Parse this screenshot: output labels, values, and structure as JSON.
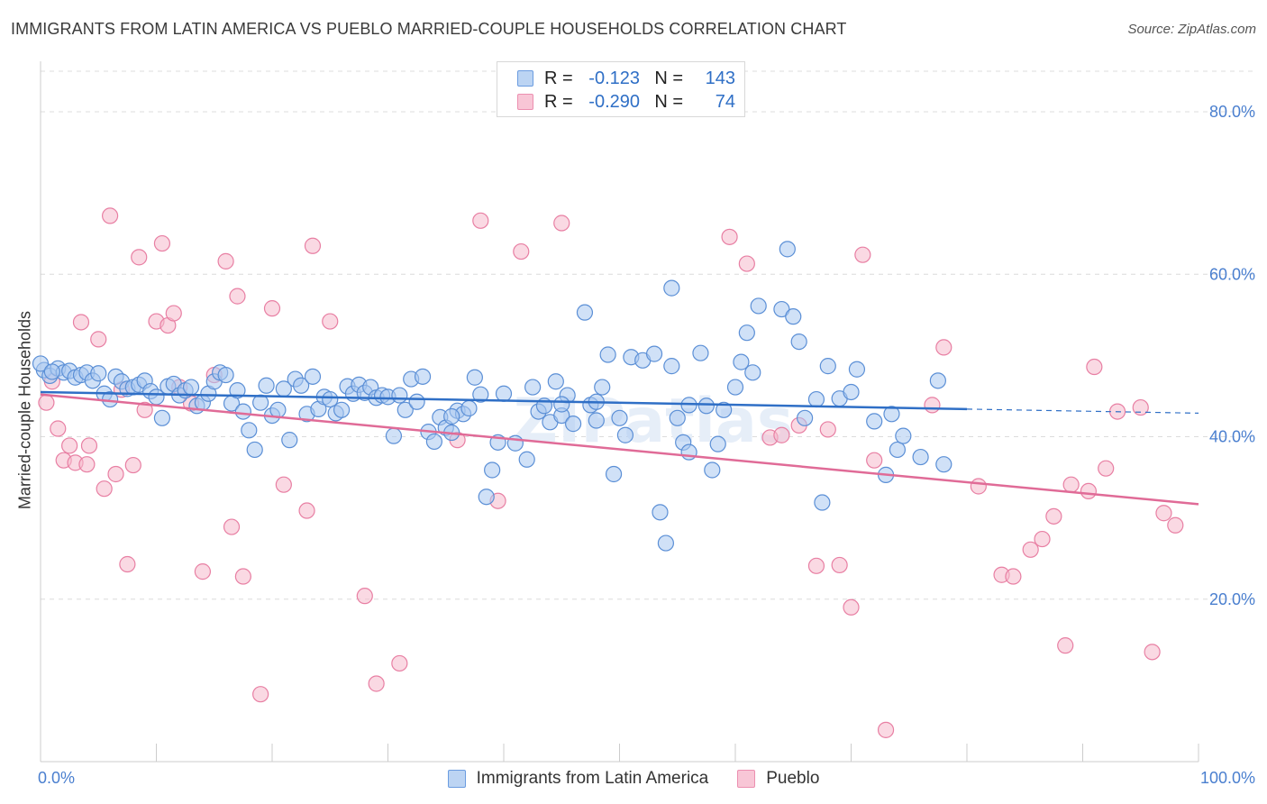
{
  "header": {
    "title": "IMMIGRANTS FROM LATIN AMERICA VS PUEBLO MARRIED-COUPLE HOUSEHOLDS CORRELATION CHART",
    "source": "Source: ZipAtlas.com"
  },
  "legend_top": {
    "rows": [
      {
        "label": "R =",
        "r": "-0.123",
        "n_label": "N =",
        "n": "143"
      },
      {
        "label": "R =",
        "r": "-0.290",
        "n_label": "N =",
        "n": "74"
      }
    ]
  },
  "colors": {
    "blue_fill": "#a9c8f0",
    "blue_stroke": "#5b8fd6",
    "blue_line": "#2f6fc6",
    "pink_fill": "#f6b9cc",
    "pink_stroke": "#e87fa3",
    "pink_line": "#e06b97",
    "tick_label": "#4a7fcf"
  },
  "chart_data": {
    "type": "scatter",
    "title": "IMMIGRANTS FROM LATIN AMERICA VS PUEBLO MARRIED-COUPLE HOUSEHOLDS CORRELATION CHART",
    "xlabel": "",
    "ylabel": "Married-couple Households",
    "xlim": [
      0,
      100
    ],
    "ylim": [
      0,
      85
    ],
    "x_ticks": [
      "0.0%",
      "100.0%"
    ],
    "y_ticks": [
      {
        "value": 20,
        "label": "20.0%"
      },
      {
        "value": 40,
        "label": "40.0%"
      },
      {
        "value": 60,
        "label": "60.0%"
      },
      {
        "value": 80,
        "label": "80.0%"
      }
    ],
    "grid": true,
    "legend_placement": "bottom-center",
    "watermark": "ZIPatlas",
    "series": [
      {
        "name": "Immigrants from Latin America",
        "color": "blue",
        "trend": {
          "x0": 0,
          "y0": 45.5,
          "x1": 80,
          "y1": 43.4,
          "dash_to_x": 100,
          "dash_to_y": 42.9
        },
        "points": [
          [
            0.3,
            48.2
          ],
          [
            0.8,
            47.5
          ],
          [
            1.5,
            48.4
          ],
          [
            2,
            47.9
          ],
          [
            2.5,
            48.1
          ],
          [
            3,
            47.3
          ],
          [
            3.5,
            47.6
          ],
          [
            4,
            47.9
          ],
          [
            4.5,
            46.9
          ],
          [
            5,
            47.8
          ],
          [
            5.5,
            45.3
          ],
          [
            6,
            44.6
          ],
          [
            6.5,
            47.4
          ],
          [
            7,
            46.8
          ],
          [
            7.5,
            45.9
          ],
          [
            8,
            46.1
          ],
          [
            8.5,
            46.4
          ],
          [
            9,
            46.9
          ],
          [
            9.5,
            45.6
          ],
          [
            10,
            44.9
          ],
          [
            10.5,
            42.3
          ],
          [
            11,
            46.2
          ],
          [
            11.5,
            46.5
          ],
          [
            12,
            45.1
          ],
          [
            12.5,
            45.7
          ],
          [
            13,
            46.1
          ],
          [
            13.5,
            43.8
          ],
          [
            14,
            44.2
          ],
          [
            14.5,
            45.3
          ],
          [
            15,
            46.8
          ],
          [
            15.5,
            47.9
          ],
          [
            16,
            47.6
          ],
          [
            16.5,
            44.1
          ],
          [
            17,
            45.7
          ],
          [
            17.5,
            43.1
          ],
          [
            18,
            40.8
          ],
          [
            18.5,
            38.4
          ],
          [
            19,
            44.2
          ],
          [
            19.5,
            46.3
          ],
          [
            20,
            42.6
          ],
          [
            20.5,
            43.3
          ],
          [
            21,
            45.9
          ],
          [
            21.5,
            39.6
          ],
          [
            22,
            47.1
          ],
          [
            22.5,
            46.3
          ],
          [
            23,
            42.8
          ],
          [
            23.5,
            47.4
          ],
          [
            24,
            43.4
          ],
          [
            24.5,
            44.9
          ],
          [
            25,
            44.6
          ],
          [
            25.5,
            42.9
          ],
          [
            26,
            43.3
          ],
          [
            26.5,
            46.2
          ],
          [
            27,
            45.3
          ],
          [
            27.5,
            46.4
          ],
          [
            28,
            45.4
          ],
          [
            28.5,
            46.1
          ],
          [
            29,
            44.8
          ],
          [
            29.5,
            45.1
          ],
          [
            30,
            44.9
          ],
          [
            30.5,
            40.1
          ],
          [
            31,
            45.1
          ],
          [
            31.5,
            43.3
          ],
          [
            32,
            47.1
          ],
          [
            32.5,
            44.3
          ],
          [
            33,
            47.4
          ],
          [
            33.5,
            40.6
          ],
          [
            34,
            39.4
          ],
          [
            34.5,
            42.4
          ],
          [
            35,
            41.1
          ],
          [
            35.5,
            40.5
          ],
          [
            36,
            43.2
          ],
          [
            36.5,
            42.8
          ],
          [
            37,
            43.5
          ],
          [
            37.5,
            47.3
          ],
          [
            38,
            45.2
          ],
          [
            38.5,
            32.6
          ],
          [
            39,
            35.9
          ],
          [
            39.5,
            39.3
          ],
          [
            40,
            45.3
          ],
          [
            41,
            39.2
          ],
          [
            42,
            37.2
          ],
          [
            42.5,
            46.1
          ],
          [
            43,
            43.1
          ],
          [
            43.5,
            43.8
          ],
          [
            44,
            41.8
          ],
          [
            44.5,
            46.8
          ],
          [
            45,
            42.6
          ],
          [
            45.5,
            45.1
          ],
          [
            46,
            41.6
          ],
          [
            47,
            55.3
          ],
          [
            47.5,
            43.9
          ],
          [
            48,
            44.3
          ],
          [
            48.5,
            46.1
          ],
          [
            49,
            50.1
          ],
          [
            49.5,
            35.4
          ],
          [
            50,
            42.3
          ],
          [
            50.5,
            40.2
          ],
          [
            51,
            49.8
          ],
          [
            52,
            49.4
          ],
          [
            53,
            50.2
          ],
          [
            53.5,
            30.7
          ],
          [
            54,
            26.9
          ],
          [
            54.5,
            48.7
          ],
          [
            55,
            42.3
          ],
          [
            55.5,
            39.3
          ],
          [
            56,
            43.9
          ],
          [
            57,
            50.3
          ],
          [
            57.5,
            43.8
          ],
          [
            58,
            35.9
          ],
          [
            58.5,
            39.1
          ],
          [
            59,
            43.3
          ],
          [
            60,
            46.1
          ],
          [
            60.5,
            49.2
          ],
          [
            61,
            52.8
          ],
          [
            61.5,
            47.9
          ],
          [
            62,
            56.1
          ],
          [
            64,
            55.7
          ],
          [
            64.5,
            63.1
          ],
          [
            65,
            54.8
          ],
          [
            65.5,
            51.7
          ],
          [
            66,
            42.3
          ],
          [
            67,
            44.6
          ],
          [
            67.5,
            31.9
          ],
          [
            68,
            48.7
          ],
          [
            69,
            44.7
          ],
          [
            70,
            45.5
          ],
          [
            70.5,
            48.3
          ],
          [
            72,
            41.9
          ],
          [
            73,
            35.3
          ],
          [
            73.5,
            42.8
          ],
          [
            74,
            38.4
          ],
          [
            74.5,
            40.1
          ],
          [
            76,
            37.5
          ],
          [
            77.5,
            46.9
          ],
          [
            78,
            36.6
          ],
          [
            0,
            49
          ],
          [
            1,
            48
          ],
          [
            54.5,
            58.3
          ],
          [
            56,
            38.1
          ],
          [
            48,
            42
          ],
          [
            35.5,
            42.5
          ],
          [
            45,
            44
          ]
        ]
      },
      {
        "name": "Pueblo",
        "color": "pink",
        "trend": {
          "x0": 0,
          "y0": 45.2,
          "x1": 100,
          "y1": 31.7
        },
        "points": [
          [
            0.5,
            44.2
          ],
          [
            1,
            46.8
          ],
          [
            1.5,
            41
          ],
          [
            2,
            37.1
          ],
          [
            2.5,
            38.9
          ],
          [
            3,
            36.8
          ],
          [
            3.5,
            54.1
          ],
          [
            4,
            36.6
          ],
          [
            4.2,
            38.9
          ],
          [
            5,
            52
          ],
          [
            5.5,
            33.6
          ],
          [
            6,
            67.2
          ],
          [
            6.5,
            35.4
          ],
          [
            7,
            45.8
          ],
          [
            7.5,
            24.3
          ],
          [
            8,
            36.5
          ],
          [
            8.5,
            62.1
          ],
          [
            9,
            43.3
          ],
          [
            10,
            54.2
          ],
          [
            10.5,
            63.8
          ],
          [
            11,
            53.7
          ],
          [
            11.5,
            55.2
          ],
          [
            12,
            46.1
          ],
          [
            13,
            44.1
          ],
          [
            14,
            23.4
          ],
          [
            15,
            47.6
          ],
          [
            16,
            61.6
          ],
          [
            16.5,
            28.9
          ],
          [
            17,
            57.3
          ],
          [
            17.5,
            22.8
          ],
          [
            19,
            8.3
          ],
          [
            20,
            55.8
          ],
          [
            21,
            34.1
          ],
          [
            23,
            30.9
          ],
          [
            23.5,
            63.5
          ],
          [
            25,
            54.2
          ],
          [
            28,
            20.4
          ],
          [
            29,
            9.6
          ],
          [
            31,
            12.1
          ],
          [
            36,
            39.6
          ],
          [
            38,
            66.6
          ],
          [
            39.5,
            32.1
          ],
          [
            41.5,
            62.8
          ],
          [
            45,
            66.3
          ],
          [
            59.5,
            64.6
          ],
          [
            61,
            61.3
          ],
          [
            63,
            39.9
          ],
          [
            64,
            40.2
          ],
          [
            65.5,
            41.4
          ],
          [
            67,
            24.1
          ],
          [
            68,
            40.9
          ],
          [
            69,
            24.2
          ],
          [
            70,
            19
          ],
          [
            71,
            62.4
          ],
          [
            72,
            37.1
          ],
          [
            73,
            3.9
          ],
          [
            77,
            43.9
          ],
          [
            78,
            51
          ],
          [
            81,
            33.9
          ],
          [
            83,
            23
          ],
          [
            84,
            22.8
          ],
          [
            85.5,
            26.1
          ],
          [
            86.5,
            27.4
          ],
          [
            87.5,
            30.2
          ],
          [
            88.5,
            14.3
          ],
          [
            89,
            34.1
          ],
          [
            90.5,
            33.3
          ],
          [
            91,
            48.6
          ],
          [
            92,
            36.1
          ],
          [
            93,
            43.1
          ],
          [
            95,
            43.6
          ],
          [
            96,
            13.5
          ],
          [
            97,
            30.6
          ],
          [
            98,
            29.1
          ]
        ]
      }
    ]
  },
  "legend_bottom": {
    "items": [
      "Immigrants from Latin America",
      "Pueblo"
    ]
  }
}
